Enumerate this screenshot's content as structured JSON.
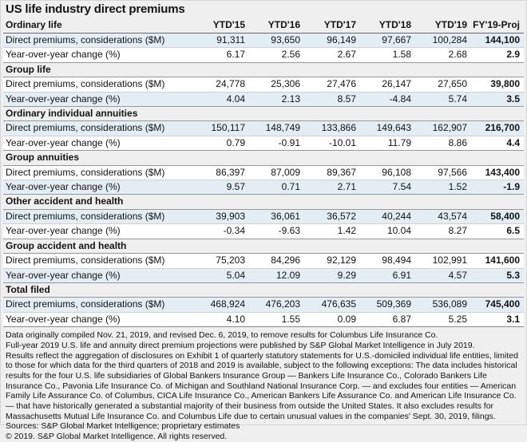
{
  "title": "US life industry direct premiums",
  "colors": {
    "page_bg": "#efefef",
    "row_white": "#ffffff",
    "row_blue": "#e3edf4",
    "projection_orange": "#f7ca84",
    "section_band_gray": "#efefef",
    "rule_dark": "#686868",
    "rule_section": "#979797"
  },
  "chart_data": {
    "type": "table",
    "title": "US life industry direct premiums",
    "columns": [
      "YTD'15",
      "YTD'16",
      "YTD'17",
      "YTD'18",
      "YTD'19",
      "FY'19-Proj"
    ],
    "row_labels": {
      "premiums": "Direct premiums, considerations ($M)",
      "yoy": "Year-over-year change (%)"
    },
    "sections": [
      {
        "label": "Ordinary life",
        "premiums": [
          "91,311",
          "93,650",
          "96,149",
          "97,667",
          "100,284",
          "144,100"
        ],
        "yoy": [
          "6.17",
          "2.56",
          "2.67",
          "1.58",
          "2.68",
          "2.9"
        ]
      },
      {
        "label": "Group life",
        "premiums": [
          "24,778",
          "25,306",
          "27,476",
          "26,147",
          "27,650",
          "39,800"
        ],
        "yoy": [
          "4.04",
          "2.13",
          "8.57",
          "-4.84",
          "5.74",
          "3.5"
        ]
      },
      {
        "label": "Ordinary individual annuities",
        "premiums": [
          "150,117",
          "148,749",
          "133,866",
          "149,643",
          "162,907",
          "216,700"
        ],
        "yoy": [
          "0.79",
          "-0.91",
          "-10.01",
          "11.79",
          "8.86",
          "4.4"
        ]
      },
      {
        "label": "Group annuities",
        "premiums": [
          "86,397",
          "87,009",
          "89,367",
          "96,108",
          "97,566",
          "143,400"
        ],
        "yoy": [
          "9.57",
          "0.71",
          "2.71",
          "7.54",
          "1.52",
          "-1.9"
        ]
      },
      {
        "label": "Other accident and health",
        "premiums": [
          "39,903",
          "36,061",
          "36,572",
          "40,244",
          "43,574",
          "58,400"
        ],
        "yoy": [
          "-0.34",
          "-9.63",
          "1.42",
          "10.04",
          "8.27",
          "6.5"
        ]
      },
      {
        "label": "Group accident and health",
        "premiums": [
          "75,203",
          "84,296",
          "92,129",
          "98,494",
          "102,991",
          "141,600"
        ],
        "yoy": [
          "5.04",
          "12.09",
          "9.29",
          "6.91",
          "4.57",
          "5.3"
        ]
      },
      {
        "label": "Total filed",
        "premiums": [
          "468,924",
          "476,203",
          "476,635",
          "509,369",
          "536,089",
          "745,400"
        ],
        "yoy": [
          "4.10",
          "1.55",
          "0.09",
          "6.87",
          "5.25",
          "3.1"
        ]
      }
    ]
  },
  "footnotes": [
    "Data originally compiled Nov. 21, 2019, and revised Dec. 6, 2019, to remove results for Columbus Life Insurance Co.",
    "Full-year 2019 U.S. life and annuity direct premium projections were published by S&P Global Market Intelligence in July 2019.",
    "Results reflect the aggregation of disclosures on Exhibit 1 of quarterly statutory statements for U.S.-domiciled individual life entities, limited to those for which data for the third quarters of 2018 and 2019 is available, subject to the following exceptions: The data includes historical results for the four U.S. life subsidiaries of Global Bankers Insurance Group — Bankers Life Insurance Co., Colorado Bankers Life Insurance Co., Pavonia Life Insurance Co. of Michigan and Southland National Insurance Corp. — and excludes four entities — American Family Life Assurance Co. of Columbus, CICA Life Insurance Co., American Bankers Life Assurance Co. and American Life Insurance Co. — that have historically generated a substantial majority of their business from outside the United States. It also excludes results for Massachusetts Mutual Life Insurance Co. and Columbus Life due to certain unusual values in the companies' Sept. 30, 2019, filings.",
    "Sources: S&P Global Market Intelligence; proprietary estimates",
    "© 2019. S&P Global Market Intelligence. All rights reserved."
  ]
}
